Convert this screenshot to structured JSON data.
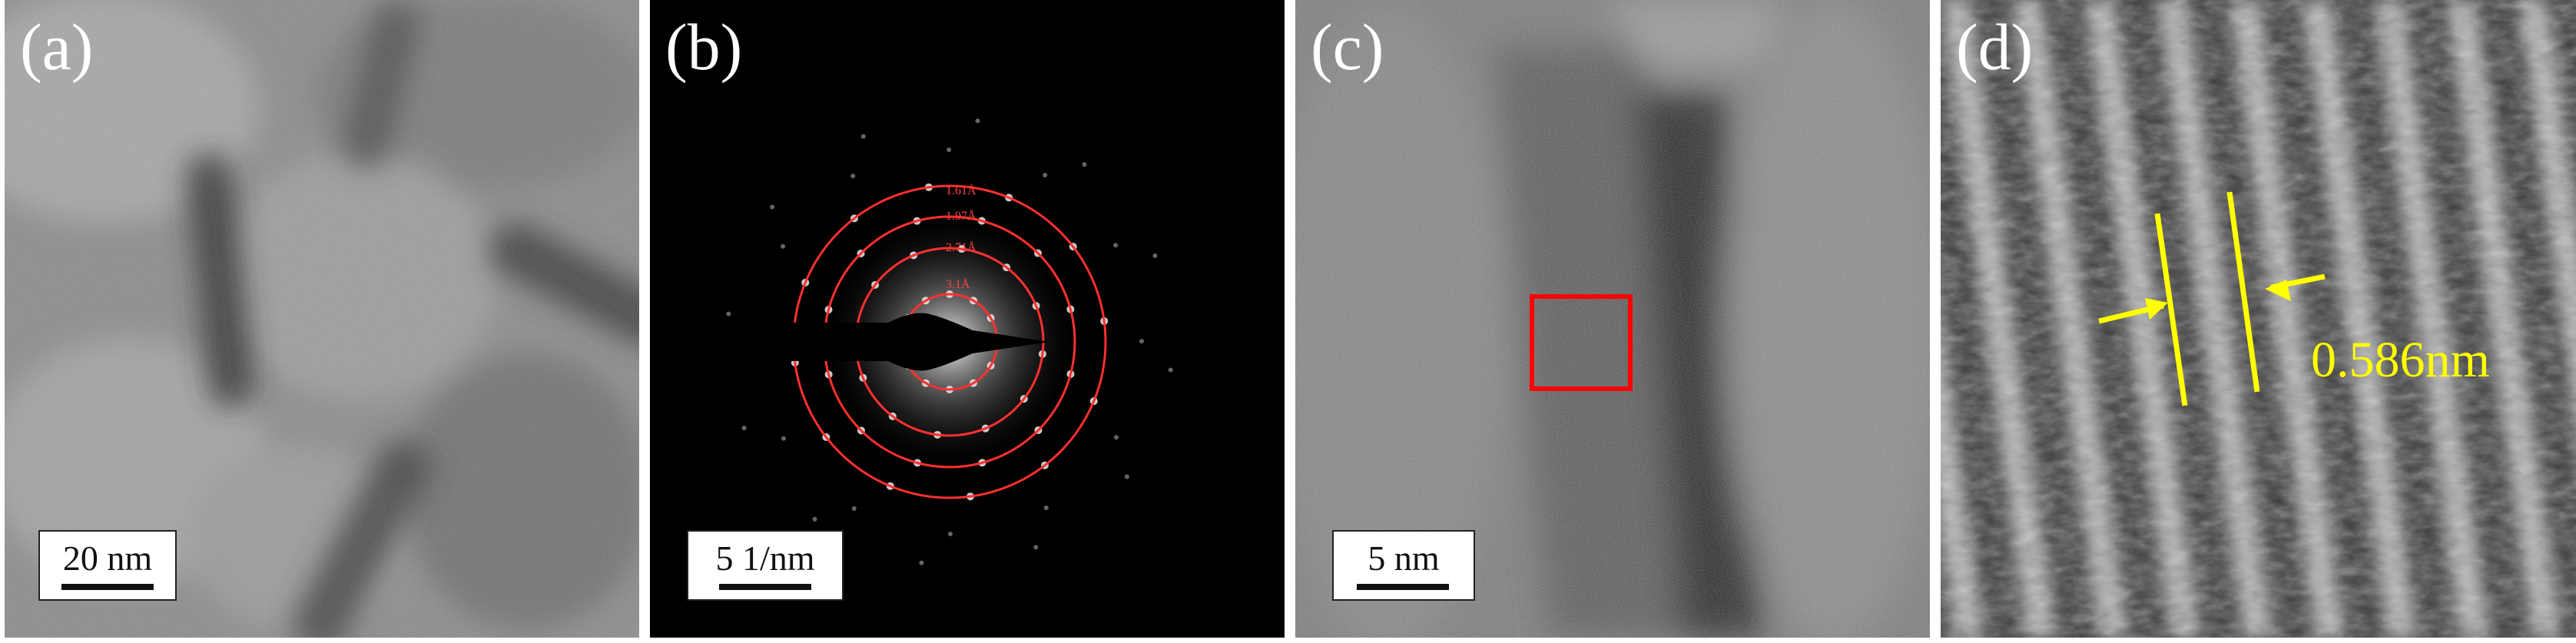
{
  "figure": {
    "panels": [
      {
        "label": "(a)",
        "scale": "20 nm",
        "content": "low-mag TEM nanorods"
      },
      {
        "label": "(b)",
        "scale": "5 1/nm",
        "content": "SAED pattern",
        "rings": [
          "1.61Å",
          "1.97Å",
          "2.71Å",
          "3.1Å"
        ]
      },
      {
        "label": "(c)",
        "scale": "5 nm",
        "content": "HRTEM with red selection box"
      },
      {
        "label": "(d)",
        "scale": "",
        "content": "lattice fringes",
        "spacing": "0.586nm"
      }
    ],
    "colors": {
      "ring": "#ff3030",
      "box": "#ff0000",
      "annotation": "#ffff00"
    }
  }
}
